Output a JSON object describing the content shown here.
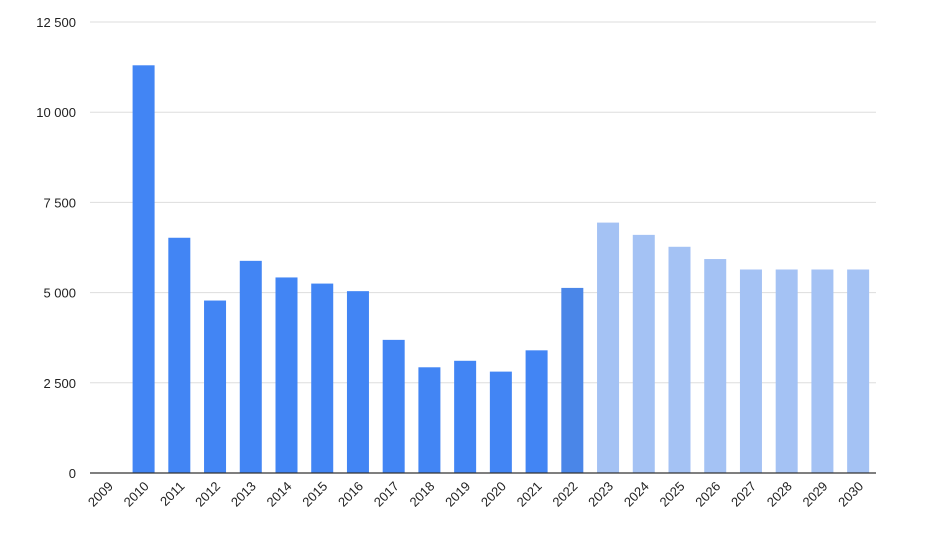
{
  "chart_data": {
    "type": "bar",
    "title": "",
    "xlabel": "",
    "ylabel": "",
    "ylim": [
      0,
      12500
    ],
    "yticks": [
      0,
      2500,
      5000,
      7500,
      10000,
      12500
    ],
    "ytick_labels": [
      "0",
      "2 500",
      "5 000",
      "7 500",
      "10 000",
      "12 500"
    ],
    "grid": "horizontal",
    "categories": [
      "2009",
      "2010",
      "2011",
      "2012",
      "2013",
      "2014",
      "2015",
      "2016",
      "2017",
      "2018",
      "2019",
      "2020",
      "2021",
      "2022",
      "2023",
      "2024",
      "2025",
      "2026",
      "2027",
      "2028",
      "2029",
      "2030"
    ],
    "values": [
      null,
      11300,
      6520,
      4780,
      5880,
      5420,
      5250,
      5040,
      3690,
      2930,
      3110,
      2810,
      3400,
      5130,
      6940,
      6600,
      6270,
      5930,
      5640,
      5640,
      5640,
      5640
    ],
    "bar_colors": [
      "#4285f4",
      "#4285f4",
      "#4285f4",
      "#4285f4",
      "#4285f4",
      "#4285f4",
      "#4285f4",
      "#4285f4",
      "#4285f4",
      "#4285f4",
      "#4285f4",
      "#4285f4",
      "#4285f4",
      "#4a86e8",
      "#a4c2f4",
      "#a4c2f4",
      "#a4c2f4",
      "#a4c2f4",
      "#a4c2f4",
      "#a4c2f4",
      "#a4c2f4",
      "#a4c2f4"
    ]
  }
}
